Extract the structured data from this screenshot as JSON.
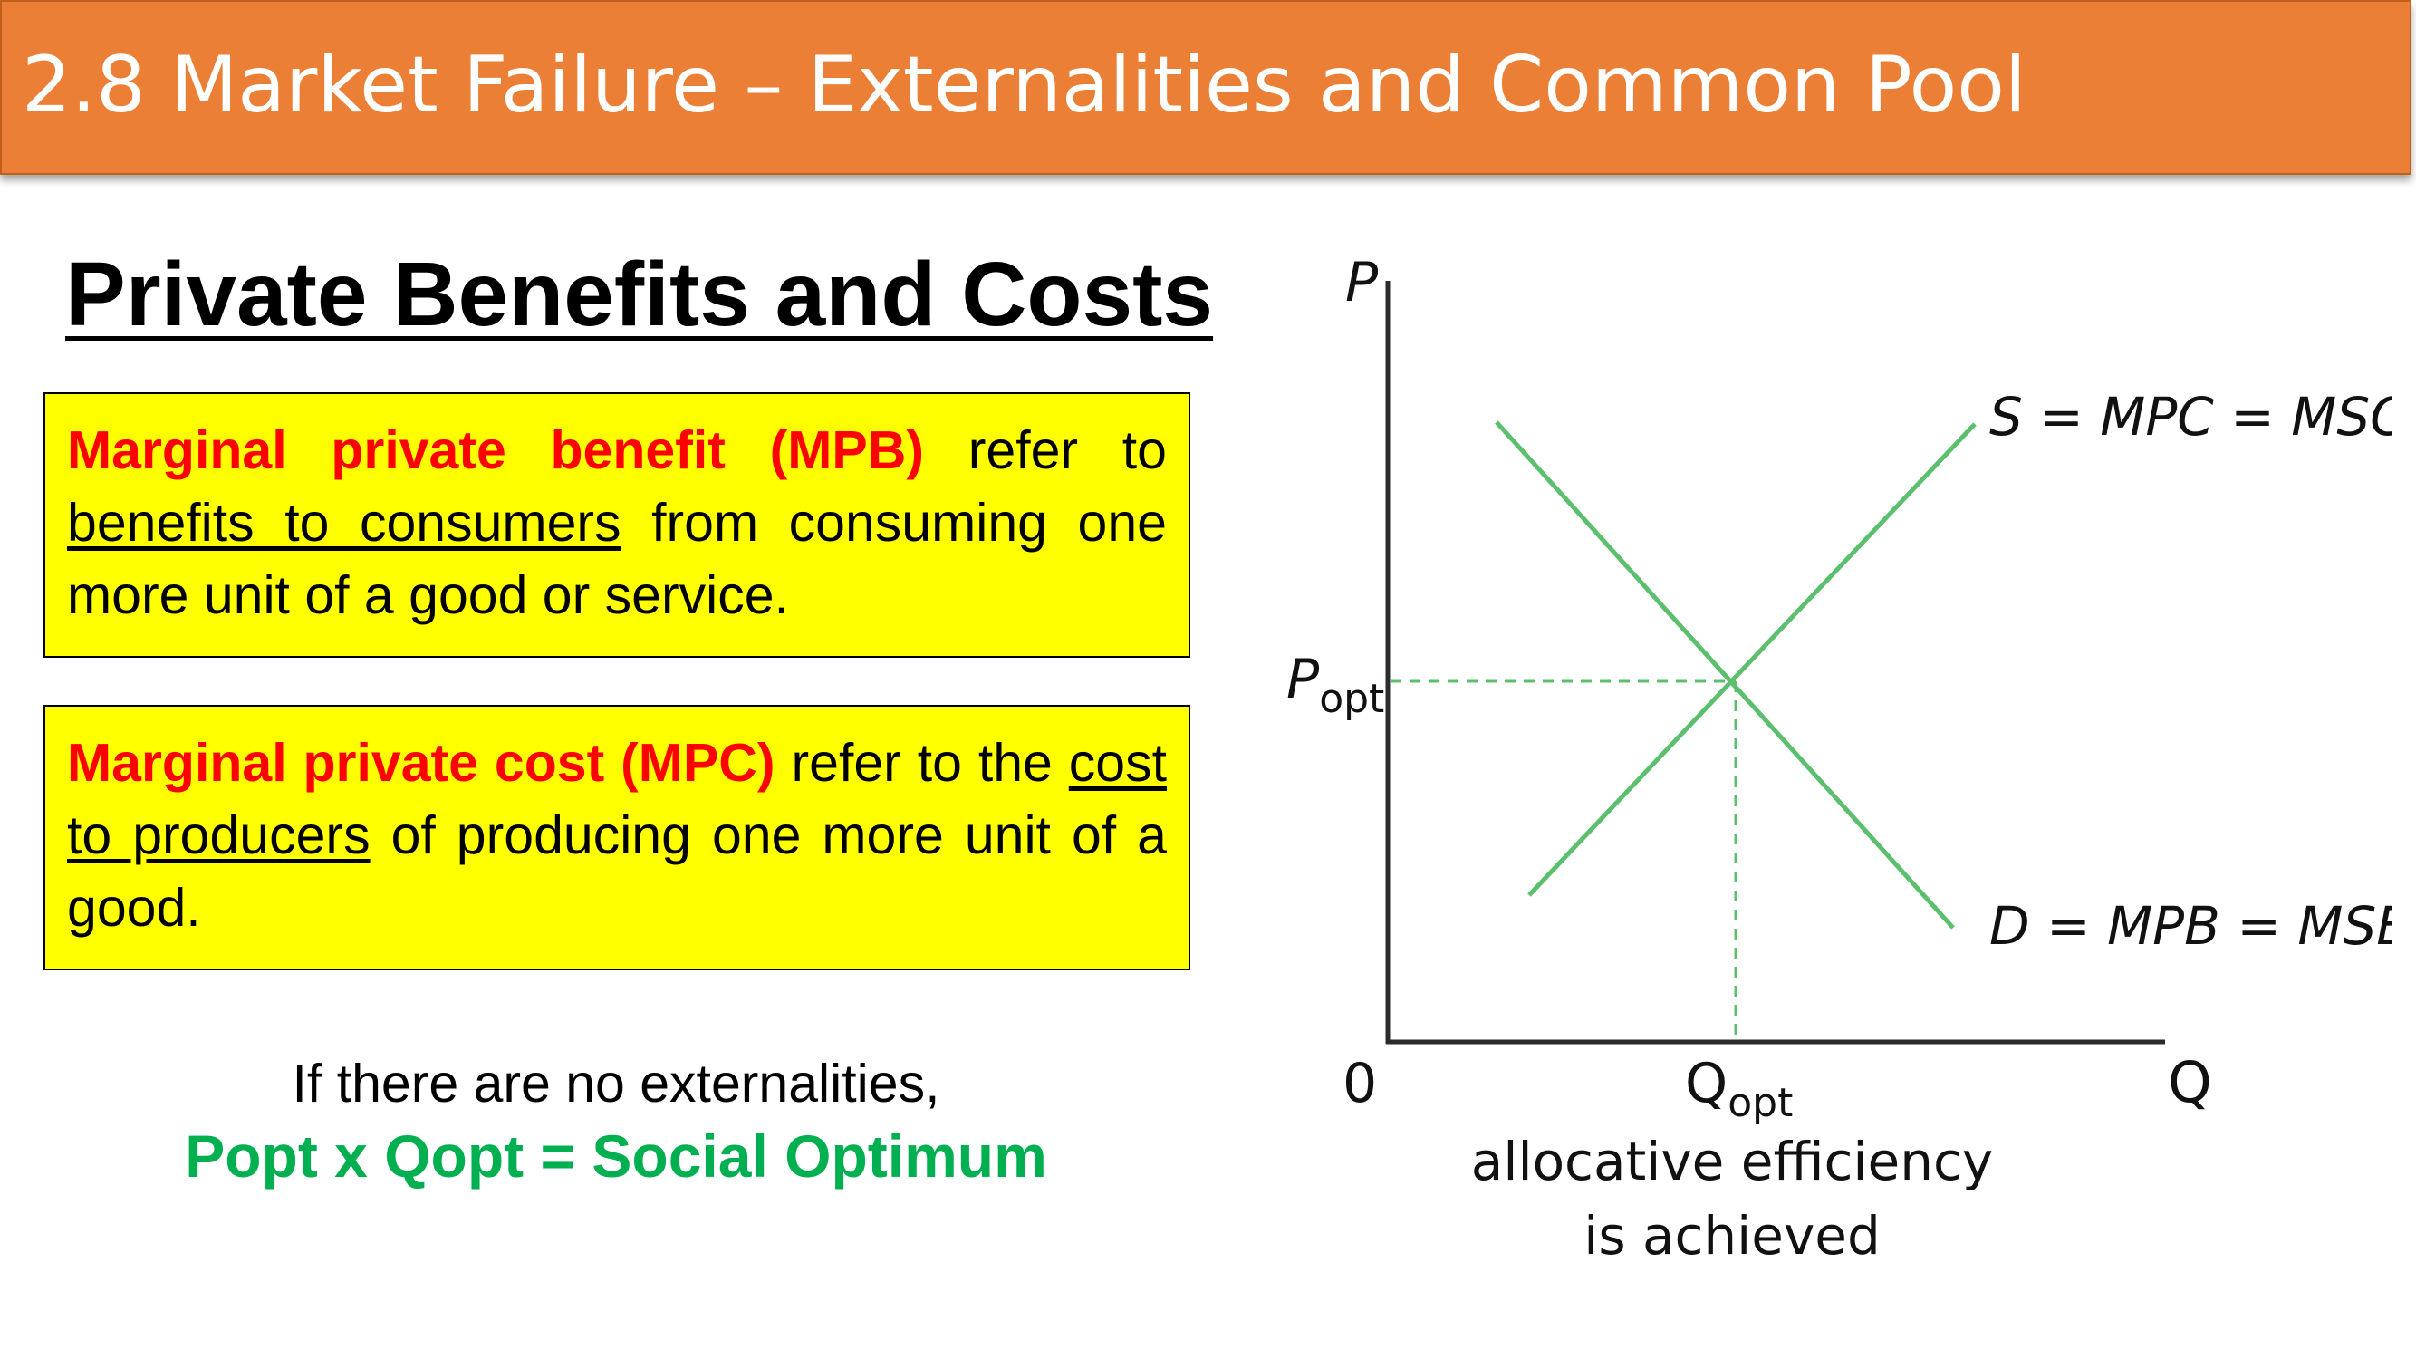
{
  "title": "2.8 Market Failure – Externalities and Common Pool",
  "heading": "Private Benefits and Costs",
  "mpb_box": {
    "term": "Marginal private benefit (MPB)",
    "text_1": " refer to ",
    "underlined": "benefits to consumers",
    "text_2": " from consuming one more unit of a good or service."
  },
  "mpc_box": {
    "term": "Marginal private cost (MPC)",
    "text_1": " refer to the ",
    "underlined": "cost to producers",
    "text_2": " of producing one more unit of a good."
  },
  "note": {
    "line1": "If there are no externalities,",
    "line2": "Popt x Qopt = Social Optimum"
  },
  "diagram": {
    "y_axis_label": "P",
    "x_axis_label": "Q",
    "origin_label": "0",
    "p_opt_main": "P",
    "p_opt_sub": "opt",
    "q_opt_main": "Q",
    "q_opt_sub": "opt",
    "supply_label": "S = MPC = MSC",
    "demand_label": "D = MPB = MSB",
    "caption_line1": "allocative efficiency",
    "caption_line2": "is achieved",
    "curve_color": "#5cbf6e"
  }
}
